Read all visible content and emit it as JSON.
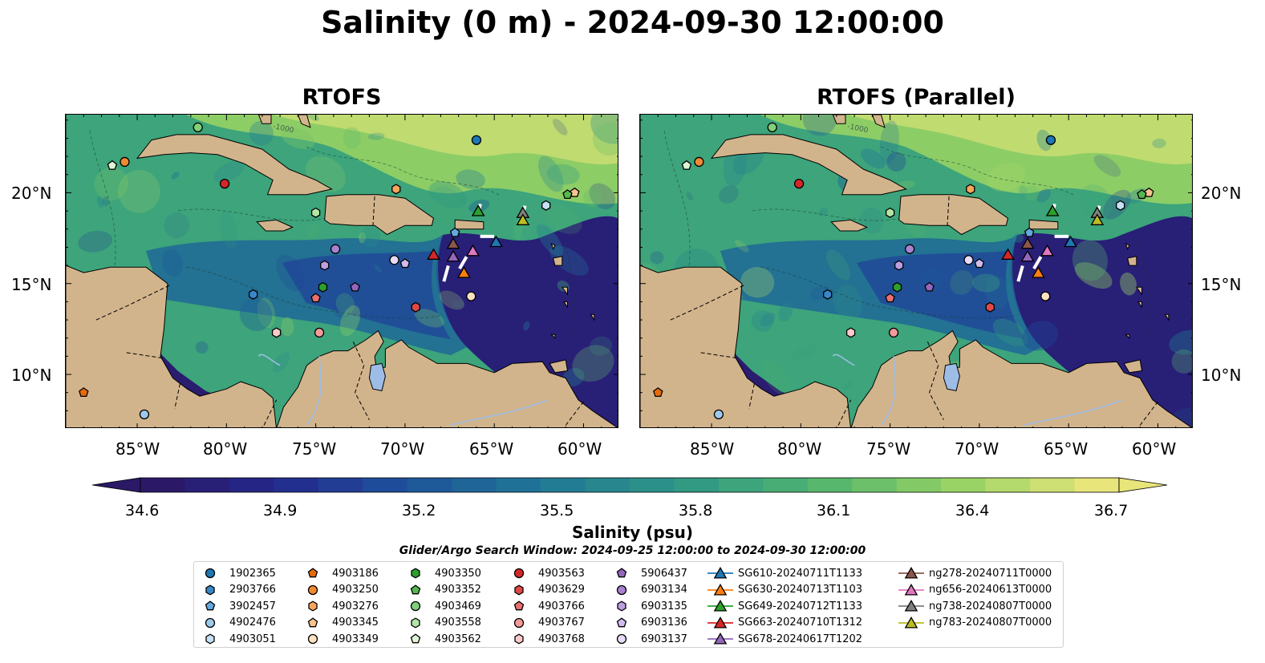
{
  "title": "Salinity (0 m) - 2024-09-30 12:00:00",
  "panels": [
    {
      "title": "RTOFS"
    },
    {
      "title": "RTOFS (Parallel)"
    }
  ],
  "lat_labels": [
    "20°N",
    "15°N",
    "10°N"
  ],
  "lon_labels": [
    "85°W",
    "80°W",
    "75°W",
    "70°W",
    "65°W",
    "60°W"
  ],
  "colorbar": {
    "label": "Salinity (psu)",
    "min": 34.6,
    "max": 36.7,
    "ticks": [
      "34.6",
      "34.9",
      "35.2",
      "35.5",
      "35.8",
      "36.1",
      "36.4",
      "36.7"
    ]
  },
  "search_window": "Glider/Argo Search Window: 2024-09-25 12:00:00 to 2024-09-30 12:00:00",
  "contour_label": "-1000",
  "colors": {
    "land": "#d2b48c",
    "low_salinity": "#2a1a6b",
    "high_salinity": "#e8e57a",
    "lake": "#9dbde6"
  },
  "legend": [
    {
      "label": "1902365",
      "marker": "circle",
      "color": "#1f77b4"
    },
    {
      "label": "2903766",
      "marker": "hexagon",
      "color": "#3a86c8"
    },
    {
      "label": "3902457",
      "marker": "pentagon",
      "color": "#64a8de"
    },
    {
      "label": "4902476",
      "marker": "circle",
      "color": "#9ecae9"
    },
    {
      "label": "4903051",
      "marker": "hexagon",
      "color": "#c6e0f5"
    },
    {
      "label": "4903186",
      "marker": "pentagon",
      "color": "#e56b0a"
    },
    {
      "label": "4903250",
      "marker": "circle",
      "color": "#f08a32"
    },
    {
      "label": "4903276",
      "marker": "hexagon",
      "color": "#f5a55c"
    },
    {
      "label": "4903345",
      "marker": "pentagon",
      "color": "#f8c38e"
    },
    {
      "label": "4903349",
      "marker": "circle",
      "color": "#fde2c2"
    },
    {
      "label": "4903350",
      "marker": "hexagon",
      "color": "#2c9f2c"
    },
    {
      "label": "4903352",
      "marker": "pentagon",
      "color": "#55b84f"
    },
    {
      "label": "4903469",
      "marker": "circle",
      "color": "#80d07a"
    },
    {
      "label": "4903558",
      "marker": "hexagon",
      "color": "#b3e6a6"
    },
    {
      "label": "4903562",
      "marker": "pentagon",
      "color": "#dff5d6"
    },
    {
      "label": "4903563",
      "marker": "circle",
      "color": "#d62728"
    },
    {
      "label": "4903629",
      "marker": "hexagon",
      "color": "#e04848"
    },
    {
      "label": "4903766",
      "marker": "pentagon",
      "color": "#ec6f6f"
    },
    {
      "label": "4903767",
      "marker": "circle",
      "color": "#f59a9a"
    },
    {
      "label": "4903768",
      "marker": "hexagon",
      "color": "#fbcaca"
    },
    {
      "label": "5906437",
      "marker": "pentagon",
      "color": "#9467bd"
    },
    {
      "label": "6903134",
      "marker": "circle",
      "color": "#a982d0"
    },
    {
      "label": "6903135",
      "marker": "hexagon",
      "color": "#bd9ee0"
    },
    {
      "label": "6903136",
      "marker": "pentagon",
      "color": "#d2bcee"
    },
    {
      "label": "6903137",
      "marker": "circle",
      "color": "#e7dbf8"
    },
    {
      "label": "SG610-20240711T1133",
      "marker": "triangle",
      "color": "#1f77b4"
    },
    {
      "label": "SG630-20240713T1103",
      "marker": "triangle",
      "color": "#ff7f0e"
    },
    {
      "label": "SG649-20240712T1133",
      "marker": "triangle",
      "color": "#2ca02c"
    },
    {
      "label": "SG663-20240710T1312",
      "marker": "triangle",
      "color": "#d62728"
    },
    {
      "label": "SG678-20240617T1202",
      "marker": "triangle",
      "color": "#9467bd"
    },
    {
      "label": "ng278-20240711T0000",
      "marker": "triangle",
      "color": "#8c564b"
    },
    {
      "label": "ng656-20240613T0000",
      "marker": "triangle",
      "color": "#e377c2"
    },
    {
      "label": "ng738-20240807T0000",
      "marker": "triangle",
      "color": "#7f7f7f"
    },
    {
      "label": "ng783-20240807T0000",
      "marker": "triangle",
      "color": "#bcbd22"
    }
  ],
  "observations": [
    {
      "id": "1902365",
      "lon": -66.0,
      "lat": 22.9
    },
    {
      "id": "2903766",
      "lon": -78.5,
      "lat": 14.4
    },
    {
      "id": "3902457",
      "lon": -67.2,
      "lat": 17.8
    },
    {
      "id": "4902476",
      "lon": -84.6,
      "lat": 7.8
    },
    {
      "id": "4903051",
      "lon": -62.1,
      "lat": 19.3
    },
    {
      "id": "4903186",
      "lon": -88.0,
      "lat": 9.0
    },
    {
      "id": "4903250",
      "lon": -85.7,
      "lat": 21.7
    },
    {
      "id": "4903276",
      "lon": -70.5,
      "lat": 20.2
    },
    {
      "id": "4903345",
      "lon": -60.5,
      "lat": 20.0
    },
    {
      "id": "4903349",
      "lon": -66.3,
      "lat": 14.3
    },
    {
      "id": "4903350",
      "lon": -74.6,
      "lat": 14.8
    },
    {
      "id": "4903352",
      "lon": -60.9,
      "lat": 19.9
    },
    {
      "id": "4903469",
      "lon": -81.6,
      "lat": 23.6
    },
    {
      "id": "4903558",
      "lon": -75.0,
      "lat": 18.9
    },
    {
      "id": "4903562",
      "lon": -86.4,
      "lat": 21.5
    },
    {
      "id": "4903563",
      "lon": -80.1,
      "lat": 20.5
    },
    {
      "id": "4903629",
      "lon": -69.4,
      "lat": 13.7
    },
    {
      "id": "4903766",
      "lon": -75.0,
      "lat": 14.2
    },
    {
      "id": "4903767",
      "lon": -74.8,
      "lat": 12.3
    },
    {
      "id": "4903768",
      "lon": -77.2,
      "lat": 12.3
    },
    {
      "id": "5906437",
      "lon": -72.8,
      "lat": 14.8
    },
    {
      "id": "6903134",
      "lon": -73.9,
      "lat": 16.9
    },
    {
      "id": "6903135",
      "lon": -74.5,
      "lat": 16.0
    },
    {
      "id": "6903136",
      "lon": -70.0,
      "lat": 16.1
    },
    {
      "id": "6903137",
      "lon": -70.6,
      "lat": 16.3
    },
    {
      "id": "SG610-20240711T1133",
      "lon": -64.9,
      "lat": 17.3
    },
    {
      "id": "SG630-20240713T1103",
      "lon": -66.7,
      "lat": 15.6
    },
    {
      "id": "SG649-20240712T1133",
      "lon": -65.9,
      "lat": 19.0
    },
    {
      "id": "SG663-20240710T1312",
      "lon": -68.4,
      "lat": 16.6
    },
    {
      "id": "SG678-20240617T1202",
      "lon": -67.3,
      "lat": 16.5
    },
    {
      "id": "ng278-20240711T0000",
      "lon": -67.3,
      "lat": 17.2
    },
    {
      "id": "ng656-20240613T0000",
      "lon": -66.2,
      "lat": 16.8
    },
    {
      "id": "ng738-20240807T0000",
      "lon": -63.4,
      "lat": 18.9
    },
    {
      "id": "ng783-20240807T0000",
      "lon": -63.4,
      "lat": 18.5
    }
  ]
}
